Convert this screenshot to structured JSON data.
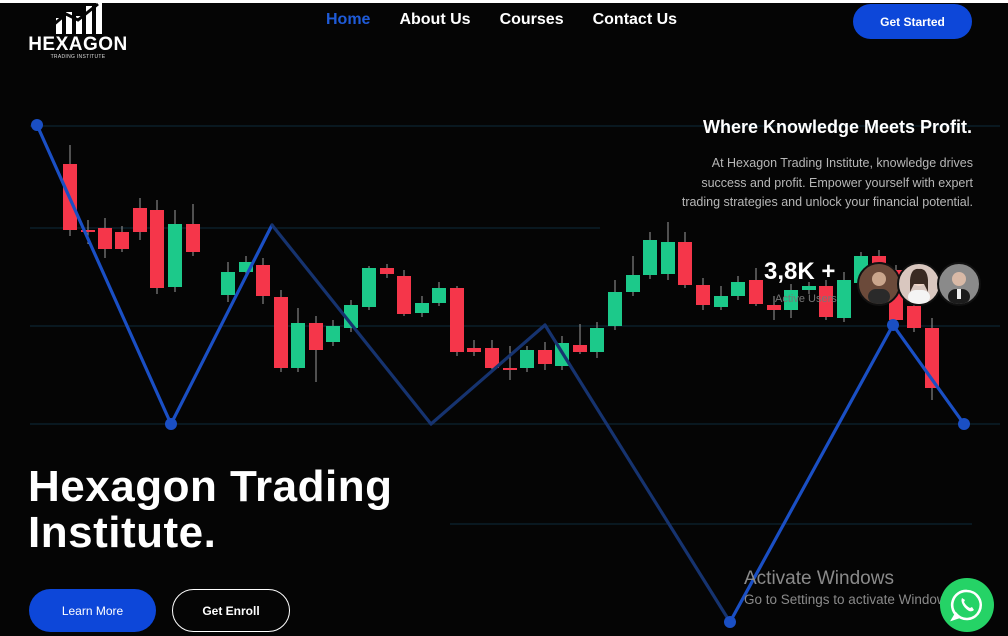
{
  "brand": {
    "name": "HEXAGON",
    "subtitle": "TRADING INSTITUTE"
  },
  "nav": {
    "items": [
      "Home",
      "About Us",
      "Courses",
      "Contact Us"
    ],
    "active": "Home"
  },
  "header": {
    "cta_label": "Get Started"
  },
  "hero": {
    "tagline": "Where Knowledge Meets Profit.",
    "description": "At Hexagon Trading Institute, knowledge drives success and profit. Empower yourself with expert trading strategies and unlock your financial potential.",
    "title_line1": "Hexagon Trading",
    "title_line2": "Institute.",
    "learn_label": "Learn More",
    "enroll_label": "Get Enroll"
  },
  "stats": {
    "value": "3,8K +",
    "label": "Active Users"
  },
  "windows_notice": {
    "title": "Activate Windows",
    "subtitle": "Go to Settings to activate Windows."
  },
  "icons": {
    "whatsapp": "whatsapp-icon",
    "logo": "bar-chart-logo-icon"
  },
  "colors": {
    "accent": "#0d47d9",
    "nav_active": "#1f5bd8",
    "candle_up": "#1cc98a",
    "candle_down": "#f5364a",
    "line": "#1a4fc4",
    "whatsapp": "#25d366"
  }
}
